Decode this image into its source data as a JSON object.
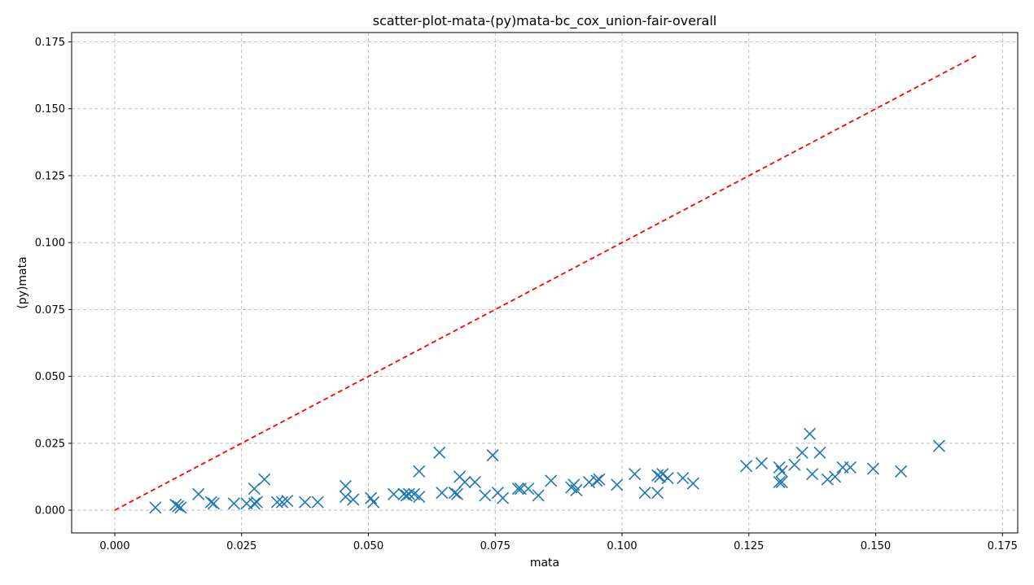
{
  "chart_data": {
    "type": "scatter",
    "title": "scatter-plot-mata-(py)mata-bc_cox_union-fair-overall",
    "xlabel": "mata",
    "ylabel": "(py)mata",
    "xlim": [
      -0.0085,
      0.178
    ],
    "ylim": [
      -0.0085,
      0.1785
    ],
    "xticks": [
      0.0,
      0.025,
      0.05,
      0.075,
      0.1,
      0.125,
      0.15,
      0.175
    ],
    "xtick_labels": [
      "0.000",
      "0.025",
      "0.050",
      "0.075",
      "0.100",
      "0.125",
      "0.150",
      "0.175"
    ],
    "yticks": [
      0.0,
      0.025,
      0.05,
      0.075,
      0.1,
      0.125,
      0.15,
      0.175
    ],
    "ytick_labels": [
      "0.000",
      "0.025",
      "0.050",
      "0.075",
      "0.100",
      "0.125",
      "0.150",
      "0.175"
    ],
    "grid": true,
    "marker": "x",
    "series": [
      {
        "color": "#1f77b4",
        "x": [
          0.008,
          0.012,
          0.0125,
          0.013,
          0.0165,
          0.019,
          0.0195,
          0.0235,
          0.026,
          0.0275,
          0.0275,
          0.028,
          0.0295,
          0.032,
          0.033,
          0.034,
          0.0375,
          0.04,
          0.0455,
          0.0455,
          0.047,
          0.0505,
          0.051,
          0.055,
          0.057,
          0.0575,
          0.058,
          0.059,
          0.06,
          0.06,
          0.064,
          0.0645,
          0.067,
          0.0675,
          0.068,
          0.069,
          0.071,
          0.073,
          0.0745,
          0.0755,
          0.0765,
          0.0795,
          0.08,
          0.0815,
          0.0835,
          0.086,
          0.09,
          0.0905,
          0.091,
          0.0935,
          0.095,
          0.0955,
          0.099,
          0.1025,
          0.1045,
          0.107,
          0.107,
          0.1075,
          0.108,
          0.109,
          0.112,
          0.114,
          0.1245,
          0.1275,
          0.131,
          0.131,
          0.1315,
          0.1315,
          0.134,
          0.1355,
          0.137,
          0.1375,
          0.139,
          0.1405,
          0.142,
          0.1435,
          0.145,
          0.1495,
          0.155,
          0.1625
        ],
        "y": [
          0.001,
          0.002,
          0.0015,
          0.001,
          0.006,
          0.003,
          0.0025,
          0.0025,
          0.0025,
          0.008,
          0.0025,
          0.003,
          0.0115,
          0.003,
          0.003,
          0.0035,
          0.003,
          0.003,
          0.009,
          0.005,
          0.004,
          0.0045,
          0.003,
          0.006,
          0.006,
          0.0055,
          0.006,
          0.006,
          0.0145,
          0.005,
          0.0215,
          0.0065,
          0.0065,
          0.006,
          0.0125,
          0.0105,
          0.0105,
          0.0055,
          0.0205,
          0.0065,
          0.0045,
          0.008,
          0.008,
          0.008,
          0.0055,
          0.011,
          0.0085,
          0.0095,
          0.0075,
          0.0105,
          0.011,
          0.0115,
          0.0095,
          0.0135,
          0.0065,
          0.013,
          0.0065,
          0.0125,
          0.0135,
          0.012,
          0.012,
          0.01,
          0.0165,
          0.0175,
          0.016,
          0.0105,
          0.0145,
          0.0105,
          0.017,
          0.0215,
          0.0285,
          0.0135,
          0.0215,
          0.0115,
          0.0125,
          0.016,
          0.016,
          0.0155,
          0.0145,
          0.024
        ]
      }
    ],
    "reference_line": {
      "color": "#ff0000",
      "style": "dashed",
      "x": [
        0.0,
        0.17
      ],
      "y": [
        0.0,
        0.17
      ]
    }
  }
}
